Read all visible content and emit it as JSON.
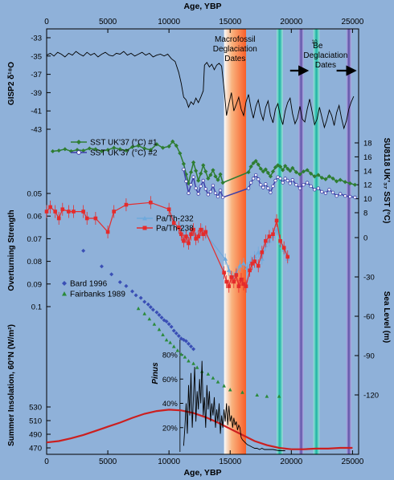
{
  "chart_data": {
    "type": "line",
    "xlabel": "Age, YBP",
    "xlim": [
      0,
      25500
    ],
    "x_ticks": [
      0,
      5000,
      10000,
      15000,
      20000,
      25000
    ],
    "colors": {
      "background": "#8fb1d9",
      "gisp2": "#000000",
      "sst1": "#2e7d32",
      "sst2": "#3f3fa8",
      "pa_th_232": "#6fa9dc",
      "pa_th_238": "#e52b2b",
      "bard": "#3a4fb5",
      "fairbanks": "#2a8a3a",
      "insolation": "#cc1f1f",
      "pinus": "#000000",
      "macrofossil_band": "#ff7a33",
      "teal_band": "#14b3a0",
      "purple_band": "#5a4aa3"
    },
    "annotations": {
      "macrofossil": "Macrofossil Deglaciation Dates",
      "be10_sup": "10",
      "be10": "Be Deglaciation Dates"
    },
    "bands": [
      {
        "type": "macrofossil",
        "from": 14500,
        "to": 16300
      },
      {
        "type": "teal",
        "from": 18800,
        "to": 19300
      },
      {
        "type": "purple",
        "from": 20600,
        "to": 21000
      },
      {
        "type": "teal",
        "from": 21800,
        "to": 22300
      },
      {
        "type": "purple",
        "from": 24500,
        "to": 24900
      }
    ],
    "left_axes": [
      {
        "label": "GISP2 δ¹⁸O",
        "ticks": [
          -33,
          -35,
          -37,
          -39,
          -41,
          -43
        ]
      },
      {
        "label": "Overturning Strength",
        "ticks": [
          0.05,
          0.06,
          0.07,
          0.08,
          0.09,
          0.1
        ]
      },
      {
        "label": "Summer Insolation, 60°N (W/m²)",
        "ticks": [
          530,
          510,
          490,
          470
        ]
      }
    ],
    "right_axes": [
      {
        "label": "SU8118 UKʹ₃₇ SST (°C)",
        "ticks": [
          18,
          16,
          14,
          12,
          10,
          8
        ]
      },
      {
        "label": "Sea Level (m)",
        "ticks": [
          0,
          -30,
          -60,
          -90,
          -120
        ]
      }
    ],
    "series": [
      {
        "name": "GISP2",
        "x": [
          0,
          300,
          600,
          900,
          1200,
          1500,
          1800,
          2100,
          2400,
          2700,
          3000,
          3300,
          3600,
          3900,
          4200,
          4500,
          4800,
          5100,
          5400,
          5700,
          6000,
          6300,
          6600,
          6900,
          7200,
          7500,
          7800,
          8100,
          8400,
          8700,
          9000,
          9300,
          9600,
          9900,
          10200,
          10500,
          10800,
          11000,
          11200,
          11400,
          11600,
          11800,
          12000,
          12200,
          12400,
          12600,
          12800,
          12900,
          13100,
          13300,
          13500,
          13700,
          13900,
          14100,
          14300,
          14500,
          14700,
          14900,
          15100,
          15300,
          15500,
          15700,
          15900,
          16100,
          16300,
          16500,
          16700,
          16900,
          17100,
          17300,
          17500,
          17700,
          17900,
          18100,
          18300,
          18500,
          18700,
          18900,
          19100,
          19300,
          19500,
          19700,
          19900,
          20100,
          20300,
          20500,
          20700,
          20900,
          21100,
          21300,
          21500,
          21700,
          21900,
          22100,
          22300,
          22500,
          22700,
          22900,
          23100,
          23300,
          23500,
          23700,
          23900,
          24100,
          24300,
          24500,
          24700,
          24900,
          25100
        ],
        "y": [
          -34.9,
          -34.7,
          -35.0,
          -34.6,
          -34.8,
          -35.1,
          -34.7,
          -34.9,
          -34.5,
          -34.8,
          -35.0,
          -34.6,
          -34.9,
          -34.7,
          -35.1,
          -34.8,
          -34.6,
          -34.9,
          -35.0,
          -34.7,
          -34.8,
          -34.5,
          -34.9,
          -34.7,
          -35.0,
          -34.8,
          -34.6,
          -34.9,
          -34.7,
          -35.1,
          -34.9,
          -34.8,
          -35.0,
          -34.8,
          -35.3,
          -35.6,
          -36.8,
          -38.0,
          -39.5,
          -39.8,
          -40.6,
          -40.0,
          -40.3,
          -39.6,
          -40.1,
          -39.5,
          -38.8,
          -36.0,
          -35.7,
          -36.2,
          -35.9,
          -36.5,
          -36.0,
          -35.8,
          -36.1,
          -38.5,
          -41.5,
          -40.2,
          -39.0,
          -41.0,
          -40.3,
          -39.5,
          -40.8,
          -41.5,
          -40.0,
          -39.2,
          -40.7,
          -41.8,
          -40.5,
          -39.8,
          -41.2,
          -42.0,
          -40.6,
          -39.9,
          -41.5,
          -42.3,
          -40.8,
          -40.2,
          -41.6,
          -42.5,
          -41.0,
          -40.1,
          -39.6,
          -41.3,
          -42.4,
          -41.8,
          -40.5,
          -41.9,
          -42.2,
          -40.8,
          -39.7,
          -41.1,
          -42.5,
          -41.9,
          -40.6,
          -41.7,
          -42.8,
          -42.0,
          -40.9,
          -41.5,
          -42.6,
          -41.2,
          -40.4,
          -41.8,
          -42.9,
          -42.1,
          -40.8,
          -40.0,
          -39.4
        ]
      },
      {
        "name": "SST UK'37 (°C) #1",
        "x": [
          500,
          1000,
          1500,
          2000,
          2500,
          3000,
          3500,
          4000,
          4500,
          5000,
          5500,
          6000,
          6500,
          7000,
          7500,
          8000,
          8500,
          9000,
          9500,
          10000,
          10300,
          10600,
          10900,
          11200,
          11400,
          11600,
          11800,
          12000,
          12200,
          12400,
          12600,
          12800,
          13000,
          13200,
          13400,
          13600,
          13800,
          14000,
          14200,
          14400,
          16500,
          16700,
          16900,
          17100,
          17300,
          17500,
          17700,
          17900,
          18100,
          18300,
          18500,
          18700,
          18900,
          19100,
          19300,
          19500,
          19700,
          19900,
          20100,
          20400,
          20700,
          21000,
          21300,
          21600,
          21900,
          22200,
          22500,
          22800,
          23100,
          23400,
          23700,
          24000,
          24400,
          24800,
          25200
        ],
        "y": [
          16.8,
          16.9,
          17.1,
          16.8,
          17.0,
          16.9,
          17.2,
          17.1,
          16.8,
          17.0,
          17.3,
          17.1,
          16.9,
          17.4,
          17.6,
          17.2,
          17.0,
          17.8,
          17.3,
          17.5,
          18.2,
          17.6,
          16.5,
          15.0,
          13.5,
          12.2,
          13.8,
          15.2,
          14.0,
          12.6,
          13.6,
          14.8,
          13.9,
          12.9,
          13.4,
          14.1,
          13.2,
          12.7,
          13.5,
          12.3,
          13.8,
          14.6,
          15.1,
          15.4,
          14.9,
          14.3,
          13.9,
          14.2,
          13.7,
          13.2,
          13.9,
          14.5,
          14.8,
          14.6,
          14.1,
          14.7,
          14.3,
          14.0,
          14.4,
          13.8,
          13.5,
          13.9,
          14.1,
          13.6,
          13.2,
          13.4,
          13.0,
          12.8,
          13.2,
          12.9,
          12.5,
          12.7,
          12.4,
          12.2,
          12.0
        ]
      },
      {
        "name": "SST UK'37 (°C) #2",
        "x": [
          11200,
          11400,
          11600,
          11800,
          12000,
          12200,
          12400,
          12600,
          12800,
          13000,
          13200,
          13400,
          13600,
          13800,
          14000,
          14200,
          14400,
          16500,
          16700,
          16900,
          17100,
          17300,
          17500,
          17700,
          17900,
          18100,
          18300,
          18500,
          18700,
          18900,
          19100,
          19300,
          19500,
          19700,
          19900,
          20100,
          20400,
          20700,
          21000,
          21300,
          21600,
          21900,
          22200,
          22500,
          22800,
          23100,
          23400,
          23700,
          24000,
          24400,
          24800,
          25200
        ],
        "y": [
          14.2,
          12.5,
          10.8,
          12.0,
          13.1,
          11.5,
          10.7,
          11.8,
          12.6,
          11.4,
          10.6,
          11.0,
          11.9,
          10.8,
          10.3,
          11.2,
          10.2,
          11.5,
          12.3,
          12.9,
          13.4,
          12.8,
          12.0,
          11.6,
          12.1,
          11.5,
          10.9,
          11.8,
          12.6,
          13.1,
          12.9,
          12.3,
          12.9,
          12.6,
          12.2,
          12.7,
          12.0,
          11.5,
          12.0,
          12.3,
          11.8,
          11.3,
          11.5,
          11.0,
          10.8,
          11.3,
          10.9,
          10.4,
          10.7,
          10.4,
          10.3,
          10.2
        ]
      },
      {
        "name": "Pa/Th-232",
        "x": [
          10900,
          11200,
          11500,
          11800,
          12100,
          12400,
          12700,
          13000,
          14600,
          14900,
          15200,
          15500,
          15800,
          16100,
          16400,
          16700,
          17000,
          17300,
          17600,
          17900,
          18200,
          18500,
          18800,
          19100,
          19400,
          19700
        ],
        "y": [
          0.064,
          0.066,
          0.069,
          0.067,
          0.068,
          0.069,
          0.066,
          0.068,
          0.079,
          0.084,
          0.087,
          0.085,
          0.082,
          0.081,
          0.083,
          0.08,
          0.078,
          0.076,
          0.079,
          0.073,
          0.071,
          0.069,
          0.066,
          0.072,
          0.075,
          0.079
        ]
      },
      {
        "name": "Pa/Th-238",
        "x": [
          0,
          300,
          700,
          1000,
          1300,
          1800,
          2200,
          3000,
          3300,
          4000,
          5000,
          5500,
          6500,
          8500,
          10000,
          10400,
          10800,
          11000,
          11200,
          11400,
          11600,
          11800,
          12000,
          12200,
          12400,
          12600,
          12800,
          13000,
          14500,
          14700,
          14900,
          15100,
          15300,
          15500,
          15700,
          15900,
          16100,
          16300,
          16600,
          16800,
          17000,
          17300,
          17600,
          17900,
          18200,
          18500,
          18800,
          19100,
          19400,
          19700
        ],
        "y": [
          0.058,
          0.056,
          0.058,
          0.061,
          0.057,
          0.058,
          0.058,
          0.058,
          0.061,
          0.061,
          0.067,
          0.058,
          0.055,
          0.054,
          0.057,
          0.063,
          0.065,
          0.068,
          0.071,
          0.069,
          0.072,
          0.068,
          0.066,
          0.07,
          0.069,
          0.066,
          0.068,
          0.067,
          0.085,
          0.089,
          0.091,
          0.087,
          0.089,
          0.086,
          0.091,
          0.088,
          0.09,
          0.091,
          0.084,
          0.081,
          0.08,
          0.082,
          0.076,
          0.071,
          0.069,
          0.068,
          0.062,
          0.071,
          0.074,
          0.078
        ]
      },
      {
        "name": "Bard 1996",
        "x": [
          3000,
          4500,
          5300,
          6000,
          6500,
          7000,
          7300,
          7700,
          8000,
          8300,
          8500,
          8700,
          9000,
          9200,
          9400,
          9600,
          9800,
          10000,
          10200,
          10400,
          10600,
          10800,
          11000,
          11200,
          11400,
          11600,
          11800,
          12000
        ],
        "y": [
          -10,
          -22,
          -28,
          -34,
          -37,
          -41,
          -44,
          -46,
          -49,
          -51,
          -53,
          -55,
          -57,
          -59,
          -61,
          -63,
          -64,
          -66,
          -68,
          -71,
          -73,
          -75,
          -77,
          -78,
          -79,
          -81,
          -83,
          -85
        ]
      },
      {
        "name": "Fairbanks 1989",
        "x": [
          7500,
          8000,
          8400,
          8800,
          9200,
          9500,
          9800,
          10100,
          10400,
          10700,
          11000,
          11300,
          11600,
          12000,
          12300,
          12700,
          13200,
          13600,
          14000,
          14500,
          15000,
          16000,
          17200,
          18000,
          19000
        ],
        "y": [
          -54,
          -58,
          -62,
          -66,
          -70,
          -74,
          -78,
          -80,
          -83,
          -86,
          -89,
          -91,
          -94,
          -96,
          -99,
          -102,
          -104,
          -107,
          -110,
          -113,
          -116,
          -118,
          -120,
          -121,
          -121
        ]
      },
      {
        "name": "Insolation 60°N",
        "x": [
          0,
          1000,
          2000,
          3000,
          4000,
          5000,
          6000,
          7000,
          8000,
          9000,
          10000,
          11000,
          12000,
          13000,
          14000,
          15000,
          16000,
          17000,
          18000,
          19000,
          20000,
          21000,
          22000,
          23000,
          24000,
          25000
        ],
        "y": [
          478,
          480,
          484,
          489,
          495,
          501,
          507,
          514,
          520,
          524,
          526,
          525,
          521,
          515,
          507,
          498,
          489,
          480,
          474,
          470,
          468,
          468,
          469,
          469,
          470,
          470
        ]
      },
      {
        "name": "Pinus",
        "x": [
          11200,
          11300,
          11400,
          11500,
          11600,
          11700,
          11800,
          11900,
          12000,
          12100,
          12200,
          12300,
          12400,
          12500,
          12600,
          12700,
          12800,
          12900,
          13000,
          13100,
          13200,
          13300,
          13400,
          13500,
          13600,
          13700,
          13800,
          13900,
          14000,
          14100,
          14200,
          14300,
          14400,
          14500,
          14600,
          14700,
          14800,
          14900,
          15000,
          15100,
          15200,
          15300,
          15400,
          15500,
          15600,
          15700,
          15800,
          15900,
          16000,
          16200,
          16400,
          16600,
          16800,
          17000,
          17200,
          17400,
          17600,
          17800,
          18000,
          18500,
          19000,
          19500
        ],
        "y": [
          5,
          20,
          40,
          15,
          55,
          30,
          65,
          20,
          45,
          70,
          25,
          50,
          35,
          60,
          40,
          75,
          30,
          45,
          20,
          55,
          35,
          50,
          25,
          40,
          30,
          45,
          20,
          35,
          25,
          40,
          15,
          30,
          20,
          35,
          25,
          40,
          22,
          38,
          25,
          30,
          20,
          28,
          22,
          25,
          18,
          22,
          20,
          12,
          10,
          8,
          6,
          5,
          4,
          3,
          3,
          2,
          3,
          2,
          2,
          2,
          1,
          1
        ]
      }
    ],
    "legend_1": [
      "SST UK'37 (°C) #1",
      "SST UK'37 (°C) #2"
    ],
    "legend_2": [
      "Pa/Th-232",
      "Pa/Th-238"
    ],
    "legend_3": [
      "Bard 1996",
      "Fairbanks 1989"
    ],
    "pinus_label": "Pinus",
    "pinus_ticks": [
      "80%",
      "60%",
      "40%",
      "20%"
    ],
    "pinus_tick_values": [
      80,
      60,
      40,
      20
    ]
  }
}
